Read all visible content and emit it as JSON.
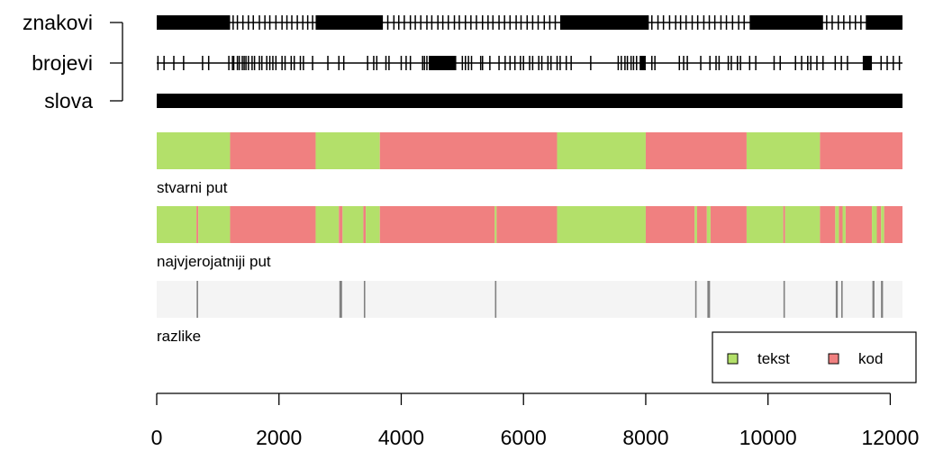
{
  "chart_data": {
    "type": "timeline",
    "xlim": [
      0,
      12200
    ],
    "x_ticks": [
      0,
      2000,
      4000,
      6000,
      8000,
      10000,
      12000
    ],
    "tick_labels": [
      "0",
      "2000",
      "4000",
      "6000",
      "8000",
      "10000",
      "12000"
    ],
    "observation_rows": [
      {
        "label": "znakovi",
        "solid": [
          [
            0,
            1200
          ],
          [
            2600,
            3700
          ],
          [
            6600,
            8050
          ],
          [
            9700,
            10900
          ],
          [
            11600,
            12200
          ]
        ],
        "ticks": [
          1250,
          1320,
          1410,
          1500,
          1580,
          1680,
          1770,
          1850,
          1950,
          2050,
          2130,
          2210,
          2300,
          2390,
          2470,
          2550,
          3780,
          3880,
          3960,
          4050,
          4150,
          4230,
          4320,
          4420,
          4500,
          4600,
          4680,
          4770,
          4870,
          4950,
          5050,
          5140,
          5230,
          5330,
          5420,
          5500,
          5600,
          5690,
          5780,
          5880,
          5960,
          6060,
          6150,
          6240,
          6340,
          6430,
          6520,
          8100,
          8200,
          8290,
          8390,
          8490,
          8570,
          8660,
          8760,
          8850,
          8950,
          9040,
          9130,
          9230,
          9320,
          9420,
          9520,
          9610,
          10960,
          11050,
          11150,
          11240,
          11340,
          11430,
          11520
        ]
      },
      {
        "label": "brojevi",
        "solid": [
          [
            4450,
            4900
          ],
          [
            7900,
            8000
          ],
          [
            11550,
            11700
          ]
        ],
        "ticks": [
          20,
          120,
          280,
          440,
          750,
          850,
          1180,
          1240,
          1260,
          1320,
          1350,
          1400,
          1430,
          1460,
          1500,
          1560,
          1600,
          1680,
          1720,
          1800,
          1850,
          1900,
          1950,
          2050,
          2100,
          2200,
          2250,
          2350,
          2400,
          2550,
          2800,
          2980,
          3060,
          3450,
          3550,
          3600,
          3750,
          3800,
          4000,
          4080,
          4150,
          4350,
          4380,
          4420,
          5000,
          5050,
          5100,
          5150,
          5300,
          5330,
          5450,
          5600,
          5700,
          5780,
          5860,
          5950,
          6000,
          6100,
          6150,
          6250,
          6300,
          6400,
          6450,
          6550,
          6600,
          6700,
          6780,
          7100,
          7550,
          7600,
          7660,
          7700,
          7760,
          7800,
          7850,
          8100,
          8150,
          8550,
          8620,
          8680,
          8900,
          9050,
          9150,
          9200,
          9350,
          9400,
          9500,
          9550,
          9700,
          9800,
          10100,
          10200,
          10450,
          10550,
          10650,
          10700,
          10800,
          10900,
          11100,
          11200,
          11300,
          11850,
          11950,
          12050,
          12150
        ]
      },
      {
        "label": "slova",
        "solid": [
          [
            0,
            12200
          ]
        ],
        "ticks": []
      }
    ],
    "state_tracks": [
      {
        "label": "stvarni put",
        "segments": [
          {
            "start": 0,
            "end": 1200,
            "state": "tekst"
          },
          {
            "start": 1200,
            "end": 2600,
            "state": "kod"
          },
          {
            "start": 2600,
            "end": 3650,
            "state": "tekst"
          },
          {
            "start": 3650,
            "end": 6550,
            "state": "kod"
          },
          {
            "start": 6550,
            "end": 8000,
            "state": "tekst"
          },
          {
            "start": 8000,
            "end": 9650,
            "state": "kod"
          },
          {
            "start": 9650,
            "end": 10850,
            "state": "tekst"
          },
          {
            "start": 10850,
            "end": 12200,
            "state": "kod"
          }
        ]
      },
      {
        "label": "najvjerojatniji put",
        "segments": [
          {
            "start": 0,
            "end": 650,
            "state": "tekst"
          },
          {
            "start": 650,
            "end": 680,
            "state": "kod"
          },
          {
            "start": 680,
            "end": 1200,
            "state": "tekst"
          },
          {
            "start": 1200,
            "end": 2600,
            "state": "kod"
          },
          {
            "start": 2600,
            "end": 2980,
            "state": "tekst"
          },
          {
            "start": 2980,
            "end": 3040,
            "state": "kod"
          },
          {
            "start": 3040,
            "end": 3380,
            "state": "tekst"
          },
          {
            "start": 3380,
            "end": 3420,
            "state": "kod"
          },
          {
            "start": 3420,
            "end": 3650,
            "state": "tekst"
          },
          {
            "start": 3650,
            "end": 5530,
            "state": "kod"
          },
          {
            "start": 5530,
            "end": 5560,
            "state": "tekst"
          },
          {
            "start": 5560,
            "end": 6550,
            "state": "kod"
          },
          {
            "start": 6550,
            "end": 8000,
            "state": "tekst"
          },
          {
            "start": 8000,
            "end": 8800,
            "state": "kod"
          },
          {
            "start": 8800,
            "end": 8840,
            "state": "tekst"
          },
          {
            "start": 8840,
            "end": 9000,
            "state": "kod"
          },
          {
            "start": 9000,
            "end": 9060,
            "state": "tekst"
          },
          {
            "start": 9060,
            "end": 9650,
            "state": "kod"
          },
          {
            "start": 9650,
            "end": 10250,
            "state": "tekst"
          },
          {
            "start": 10250,
            "end": 10280,
            "state": "kod"
          },
          {
            "start": 10280,
            "end": 10850,
            "state": "tekst"
          },
          {
            "start": 10850,
            "end": 11100,
            "state": "kod"
          },
          {
            "start": 11100,
            "end": 11160,
            "state": "tekst"
          },
          {
            "start": 11160,
            "end": 11220,
            "state": "kod"
          },
          {
            "start": 11220,
            "end": 11270,
            "state": "tekst"
          },
          {
            "start": 11270,
            "end": 11700,
            "state": "kod"
          },
          {
            "start": 11700,
            "end": 11780,
            "state": "tekst"
          },
          {
            "start": 11780,
            "end": 11850,
            "state": "kod"
          },
          {
            "start": 11850,
            "end": 11900,
            "state": "tekst"
          },
          {
            "start": 11900,
            "end": 12200,
            "state": "kod"
          }
        ]
      }
    ],
    "differences": {
      "label": "razlike",
      "positions": [
        665,
        3000,
        3010,
        3020,
        3400,
        5545,
        8820,
        9020,
        9030,
        9040,
        10265,
        11120,
        11130,
        11210,
        11720,
        11730,
        11860,
        11870
      ]
    },
    "legend": {
      "position": "bottom-right",
      "items": [
        {
          "label": "tekst",
          "color": "#b3e06a"
        },
        {
          "label": "kod",
          "color": "#f08080"
        }
      ]
    },
    "colors": {
      "tekst": "#b3e06a",
      "kod": "#f08080",
      "background_band": "#f4f4f4",
      "difference_mark": "#808080",
      "observation": "#000000"
    }
  }
}
